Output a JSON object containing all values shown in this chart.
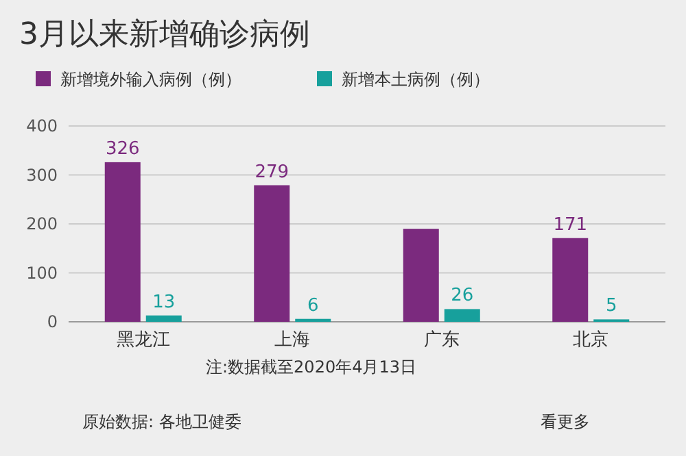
{
  "chart_data": {
    "type": "bar",
    "title": "3月以来新增确诊病例",
    "categories": [
      "黑龙江",
      "上海",
      "广东",
      "北京"
    ],
    "series": [
      {
        "name": "新增境外输入病例（例）",
        "color": "#7b2a7e",
        "values": [
          326,
          279,
          190,
          171
        ],
        "value_labels": [
          "326",
          "279",
          null,
          "171"
        ]
      },
      {
        "name": "新增本土病例（例）",
        "color": "#17a09c",
        "values": [
          13,
          6,
          26,
          5
        ],
        "value_labels": [
          "13",
          "6",
          "26",
          "5"
        ]
      }
    ],
    "ylim": [
      0,
      400
    ],
    "yticks": [
      0,
      100,
      200,
      300,
      400
    ],
    "grid": "y",
    "legend": "top left",
    "annotations": [
      "注:数据截至2020年4月13日",
      "原始数据: 各地卫健委",
      "看更多"
    ]
  }
}
